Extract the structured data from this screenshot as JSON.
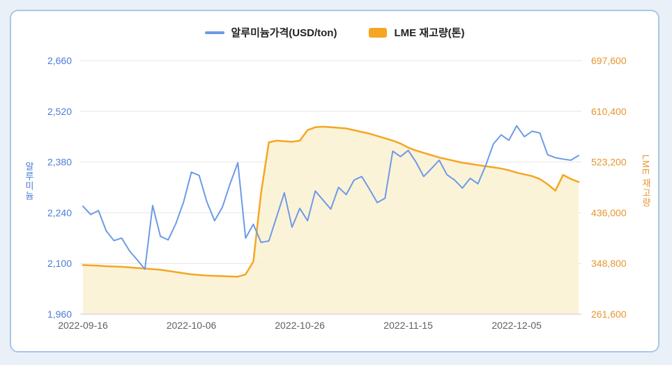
{
  "legend": {
    "aluminum": "알루미늄가격(USD/ton)",
    "lme": "LME 재고량(톤)"
  },
  "colors": {
    "page_bg": "#e9f0f8",
    "card_border": "#a9c6e8",
    "aluminum_line": "#6d9ae8",
    "lme_line": "#f5a623",
    "lme_fill": "#fbf1d3",
    "left_axis": "#4a7cd6",
    "right_axis": "#e8952e",
    "grid": "#e4e4e4",
    "axis_line": "#c9c9c9",
    "x_tick": "#606060"
  },
  "chart_data": {
    "type": "line",
    "title": "",
    "legend_position": "top",
    "grid": true,
    "x": [
      "2022-09-16",
      "2022-09-19",
      "2022-09-20",
      "2022-09-21",
      "2022-09-22",
      "2022-09-23",
      "2022-09-26",
      "2022-09-27",
      "2022-09-28",
      "2022-09-29",
      "2022-09-30",
      "2022-10-03",
      "2022-10-04",
      "2022-10-05",
      "2022-10-06",
      "2022-10-07",
      "2022-10-10",
      "2022-10-11",
      "2022-10-12",
      "2022-10-13",
      "2022-10-14",
      "2022-10-17",
      "2022-10-18",
      "2022-10-19",
      "2022-10-20",
      "2022-10-21",
      "2022-10-24",
      "2022-10-25",
      "2022-10-26",
      "2022-10-27",
      "2022-10-28",
      "2022-10-31",
      "2022-11-01",
      "2022-11-02",
      "2022-11-03",
      "2022-11-04",
      "2022-11-07",
      "2022-11-08",
      "2022-11-09",
      "2022-11-10",
      "2022-11-11",
      "2022-11-14",
      "2022-11-15",
      "2022-11-16",
      "2022-11-17",
      "2022-11-18",
      "2022-11-21",
      "2022-11-22",
      "2022-11-23",
      "2022-11-24",
      "2022-11-25",
      "2022-11-28",
      "2022-11-29",
      "2022-11-30",
      "2022-12-01",
      "2022-12-02",
      "2022-12-05",
      "2022-12-06",
      "2022-12-07",
      "2022-12-08",
      "2022-12-09",
      "2022-12-12",
      "2022-12-13",
      "2022-12-14",
      "2022-12-15"
    ],
    "x_tick_labels": [
      "2022-09-16",
      "2022-10-06",
      "2022-10-26",
      "2022-11-15",
      "2022-12-05"
    ],
    "series": [
      {
        "name": "알루미늄가격(USD/ton)",
        "axis": "left",
        "color": "#6d9ae8",
        "values": [
          2258,
          2235,
          2246,
          2190,
          2163,
          2170,
          2135,
          2110,
          2084,
          2260,
          2175,
          2165,
          2210,
          2270,
          2352,
          2343,
          2270,
          2218,
          2255,
          2320,
          2378,
          2170,
          2208,
          2158,
          2162,
          2228,
          2295,
          2200,
          2252,
          2218,
          2300,
          2275,
          2250,
          2310,
          2290,
          2330,
          2340,
          2305,
          2268,
          2280,
          2410,
          2395,
          2412,
          2380,
          2340,
          2362,
          2385,
          2345,
          2330,
          2308,
          2335,
          2320,
          2370,
          2430,
          2455,
          2440,
          2480,
          2450,
          2465,
          2460,
          2400,
          2392,
          2388,
          2385,
          2398
        ]
      },
      {
        "name": "LME 재고량(톤)",
        "axis": "right",
        "color": "#f5a623",
        "fill": "#fbf1d3",
        "values": [
          346000,
          345500,
          345000,
          344000,
          343500,
          343000,
          342000,
          341000,
          340000,
          339000,
          338000,
          336000,
          334000,
          332000,
          330000,
          329000,
          328000,
          327500,
          327000,
          326500,
          326000,
          330000,
          352000,
          470000,
          557000,
          560000,
          559000,
          558000,
          560000,
          578000,
          583000,
          584000,
          583000,
          582000,
          581000,
          578000,
          575000,
          572000,
          568000,
          564000,
          560000,
          555000,
          548000,
          543000,
          539000,
          535000,
          531000,
          528000,
          525000,
          522000,
          520000,
          518000,
          516000,
          514000,
          512000,
          509000,
          505000,
          502000,
          499000,
          494000,
          485000,
          474000,
          501000,
          494000,
          489000
        ]
      }
    ],
    "left_axis": {
      "label": "알루미늄",
      "ticks": [
        1960,
        2100,
        2240,
        2380,
        2520,
        2660
      ],
      "range": [
        1960,
        2660
      ]
    },
    "right_axis": {
      "label": "LME 재고량",
      "ticks": [
        261600,
        348800,
        436000,
        523200,
        610400,
        697600
      ],
      "range": [
        261600,
        697600
      ]
    }
  }
}
